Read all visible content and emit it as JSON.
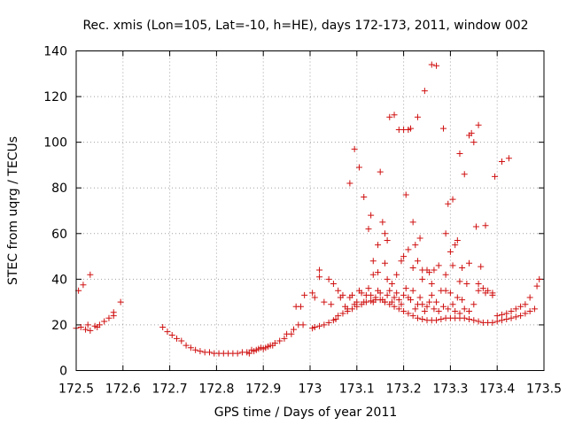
{
  "chart_data": {
    "type": "scatter",
    "title": "Rec. xmis (Lon=105, Lat=-10, h=HE), days 172-173, 2011, window 002",
    "xlabel": "GPS time / Days of year 2011",
    "ylabel": "STEC from uqrg / TECUs",
    "xlim": [
      172.5,
      173.5
    ],
    "ylim": [
      0,
      140
    ],
    "x_ticks": [
      172.5,
      172.6,
      172.7,
      172.8,
      172.9,
      173.0,
      173.1,
      173.2,
      173.3,
      173.4,
      173.5
    ],
    "x_tick_labels": [
      "172.5",
      "172.6",
      "172.7",
      "172.8",
      "172.9",
      "173",
      "173.1",
      "173.2",
      "173.3",
      "173.4",
      "173.5"
    ],
    "y_ticks": [
      0,
      20,
      40,
      60,
      80,
      100,
      120,
      140
    ],
    "y_tick_labels": [
      "0",
      "20",
      "40",
      "60",
      "80",
      "100",
      "120",
      "140"
    ],
    "grid": true,
    "marker": "+",
    "color": "#d01010",
    "points": [
      [
        172.5,
        18.5
      ],
      [
        172.505,
        35
      ],
      [
        172.515,
        37.5
      ],
      [
        172.52,
        18
      ],
      [
        172.53,
        42
      ],
      [
        172.53,
        17.5
      ],
      [
        172.54,
        19.5
      ],
      [
        172.55,
        20
      ],
      [
        172.56,
        21.5
      ],
      [
        172.57,
        23
      ],
      [
        172.58,
        24
      ],
      [
        172.58,
        25.5
      ],
      [
        172.595,
        30
      ],
      [
        172.51,
        19
      ],
      [
        172.525,
        20
      ],
      [
        172.545,
        19
      ],
      [
        172.685,
        19
      ],
      [
        172.695,
        17
      ],
      [
        172.705,
        15.5
      ],
      [
        172.715,
        14
      ],
      [
        172.725,
        13
      ],
      [
        172.735,
        11
      ],
      [
        172.745,
        10
      ],
      [
        172.755,
        9
      ],
      [
        172.765,
        8.5
      ],
      [
        172.775,
        8
      ],
      [
        172.785,
        8
      ],
      [
        172.795,
        7.5
      ],
      [
        172.805,
        7.5
      ],
      [
        172.815,
        7.5
      ],
      [
        172.825,
        7.5
      ],
      [
        172.835,
        7.5
      ],
      [
        172.845,
        7.5
      ],
      [
        172.855,
        8
      ],
      [
        172.865,
        8
      ],
      [
        172.875,
        9
      ],
      [
        172.885,
        9
      ],
      [
        172.895,
        10
      ],
      [
        172.905,
        10
      ],
      [
        172.915,
        11
      ],
      [
        172.925,
        12
      ],
      [
        172.935,
        13
      ],
      [
        172.945,
        14
      ],
      [
        172.95,
        16
      ],
      [
        172.96,
        16
      ],
      [
        172.965,
        18
      ],
      [
        172.975,
        20
      ],
      [
        172.985,
        20
      ],
      [
        172.97,
        28
      ],
      [
        172.98,
        28
      ],
      [
        172.988,
        33
      ],
      [
        172.87,
        7.5
      ],
      [
        172.88,
        8.5
      ],
      [
        172.89,
        9.5
      ],
      [
        172.9,
        9.5
      ],
      [
        172.91,
        10.5
      ],
      [
        172.92,
        11
      ],
      [
        173.005,
        18.5
      ],
      [
        173.01,
        19
      ],
      [
        173.02,
        19.5
      ],
      [
        173.03,
        20
      ],
      [
        173.04,
        21
      ],
      [
        173.05,
        22
      ],
      [
        173.055,
        22.5
      ],
      [
        173.06,
        24
      ],
      [
        173.07,
        25
      ],
      [
        173.08,
        26
      ],
      [
        173.09,
        27
      ],
      [
        173.1,
        28
      ],
      [
        173.11,
        29
      ],
      [
        173.12,
        30
      ],
      [
        173.13,
        30.5
      ],
      [
        173.14,
        31
      ],
      [
        173.15,
        31
      ],
      [
        173.16,
        30
      ],
      [
        173.17,
        29
      ],
      [
        173.18,
        28
      ],
      [
        173.19,
        27
      ],
      [
        173.2,
        26
      ],
      [
        173.21,
        25
      ],
      [
        173.22,
        24
      ],
      [
        173.23,
        23
      ],
      [
        173.24,
        22.5
      ],
      [
        173.25,
        22
      ],
      [
        173.26,
        22
      ],
      [
        173.27,
        22
      ],
      [
        173.28,
        22.5
      ],
      [
        173.29,
        23
      ],
      [
        173.3,
        23
      ],
      [
        173.31,
        23
      ],
      [
        173.32,
        23
      ],
      [
        173.33,
        23
      ],
      [
        173.34,
        22.5
      ],
      [
        173.35,
        22
      ],
      [
        173.36,
        21.5
      ],
      [
        173.37,
        21
      ],
      [
        173.38,
        21
      ],
      [
        173.39,
        21
      ],
      [
        173.4,
        21.5
      ],
      [
        173.41,
        22
      ],
      [
        173.42,
        22.5
      ],
      [
        173.43,
        23
      ],
      [
        173.44,
        23.5
      ],
      [
        173.45,
        24
      ],
      [
        173.46,
        25
      ],
      [
        173.47,
        26
      ],
      [
        173.48,
        27
      ],
      [
        173.485,
        37
      ],
      [
        173.49,
        40
      ],
      [
        173.47,
        32
      ],
      [
        173.46,
        29
      ],
      [
        173.45,
        28
      ],
      [
        173.44,
        27
      ],
      [
        173.43,
        26
      ],
      [
        173.42,
        25
      ],
      [
        173.41,
        24.5
      ],
      [
        173.4,
        24
      ],
      [
        173.39,
        34
      ],
      [
        173.38,
        35
      ],
      [
        173.37,
        36
      ],
      [
        173.36,
        38
      ],
      [
        173.005,
        34
      ],
      [
        173.01,
        32
      ],
      [
        173.02,
        44
      ],
      [
        173.02,
        41
      ],
      [
        173.03,
        30
      ],
      [
        173.04,
        40
      ],
      [
        173.045,
        29
      ],
      [
        173.05,
        38
      ],
      [
        173.06,
        35
      ],
      [
        173.065,
        32
      ],
      [
        173.07,
        33
      ],
      [
        173.075,
        28
      ],
      [
        173.08,
        27
      ],
      [
        173.085,
        32
      ],
      [
        173.09,
        33
      ],
      [
        173.095,
        29
      ],
      [
        173.1,
        30
      ],
      [
        173.105,
        35
      ],
      [
        173.11,
        34
      ],
      [
        173.115,
        30
      ],
      [
        173.12,
        33
      ],
      [
        173.125,
        36
      ],
      [
        173.13,
        33
      ],
      [
        173.135,
        30
      ],
      [
        173.14,
        32
      ],
      [
        173.145,
        35
      ],
      [
        173.15,
        34
      ],
      [
        173.155,
        31
      ],
      [
        173.16,
        30
      ],
      [
        173.165,
        33
      ],
      [
        173.17,
        35
      ],
      [
        173.175,
        30
      ],
      [
        173.18,
        32
      ],
      [
        173.185,
        34
      ],
      [
        173.19,
        31
      ],
      [
        173.195,
        29
      ],
      [
        173.2,
        33
      ],
      [
        173.205,
        36
      ],
      [
        173.21,
        32
      ],
      [
        173.215,
        31
      ],
      [
        173.22,
        35
      ],
      [
        173.225,
        27
      ],
      [
        173.23,
        29
      ],
      [
        173.235,
        32
      ],
      [
        173.24,
        29
      ],
      [
        173.245,
        26
      ],
      [
        173.25,
        28
      ],
      [
        173.255,
        30
      ],
      [
        173.26,
        33
      ],
      [
        173.265,
        27
      ],
      [
        173.27,
        30
      ],
      [
        173.275,
        26
      ],
      [
        173.28,
        35
      ],
      [
        173.285,
        28
      ],
      [
        173.29,
        35
      ],
      [
        173.295,
        27
      ],
      [
        173.3,
        34
      ],
      [
        173.305,
        29
      ],
      [
        173.31,
        26
      ],
      [
        173.315,
        32
      ],
      [
        173.32,
        25
      ],
      [
        173.325,
        31
      ],
      [
        173.33,
        27
      ],
      [
        173.34,
        26
      ],
      [
        173.35,
        29
      ],
      [
        173.36,
        35
      ],
      [
        173.375,
        34
      ],
      [
        173.39,
        33
      ],
      [
        173.085,
        82
      ],
      [
        173.095,
        97
      ],
      [
        173.105,
        89
      ],
      [
        173.115,
        76
      ],
      [
        173.125,
        62
      ],
      [
        173.13,
        68
      ],
      [
        173.135,
        48
      ],
      [
        173.145,
        55
      ],
      [
        173.15,
        87
      ],
      [
        173.155,
        65
      ],
      [
        173.16,
        60
      ],
      [
        173.165,
        57
      ],
      [
        173.17,
        111
      ],
      [
        173.18,
        112
      ],
      [
        173.19,
        105.5
      ],
      [
        173.2,
        105.5
      ],
      [
        173.205,
        77
      ],
      [
        173.21,
        105.5
      ],
      [
        173.215,
        106
      ],
      [
        173.22,
        65
      ],
      [
        173.225,
        55
      ],
      [
        173.23,
        111
      ],
      [
        173.235,
        58
      ],
      [
        173.24,
        44
      ],
      [
        173.245,
        122.5
      ],
      [
        173.255,
        43
      ],
      [
        173.26,
        134
      ],
      [
        173.265,
        44
      ],
      [
        173.27,
        133.5
      ],
      [
        173.285,
        106
      ],
      [
        173.29,
        60
      ],
      [
        173.295,
        73
      ],
      [
        173.3,
        52
      ],
      [
        173.305,
        75
      ],
      [
        173.31,
        55
      ],
      [
        173.315,
        57
      ],
      [
        173.32,
        95
      ],
      [
        173.325,
        45
      ],
      [
        173.33,
        86
      ],
      [
        173.335,
        38
      ],
      [
        173.34,
        103
      ],
      [
        173.345,
        104
      ],
      [
        173.35,
        100
      ],
      [
        173.36,
        107.5
      ],
      [
        173.355,
        63
      ],
      [
        173.365,
        45.5
      ],
      [
        173.375,
        63.5
      ],
      [
        173.395,
        85
      ],
      [
        173.41,
        91.5
      ],
      [
        173.425,
        93
      ],
      [
        173.135,
        42
      ],
      [
        173.145,
        43
      ],
      [
        173.16,
        47
      ],
      [
        173.165,
        40
      ],
      [
        173.175,
        38
      ],
      [
        173.185,
        42
      ],
      [
        173.195,
        48
      ],
      [
        173.2,
        50
      ],
      [
        173.21,
        53
      ],
      [
        173.22,
        45
      ],
      [
        173.23,
        48
      ],
      [
        173.24,
        40
      ],
      [
        173.25,
        44
      ],
      [
        173.26,
        38
      ],
      [
        173.275,
        46
      ],
      [
        173.29,
        42
      ],
      [
        173.305,
        46
      ],
      [
        173.32,
        39
      ],
      [
        173.34,
        47
      ]
    ]
  }
}
